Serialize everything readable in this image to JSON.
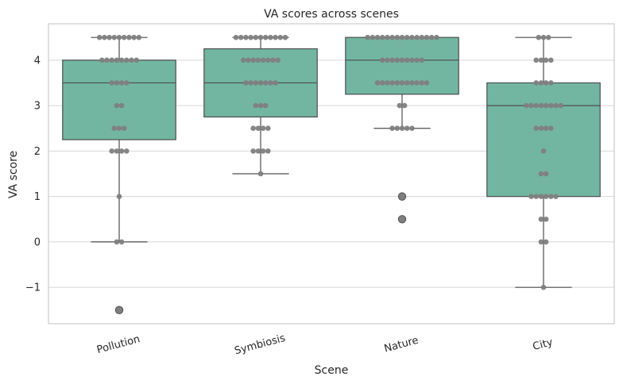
{
  "chart_data": {
    "type": "box",
    "title": "VA scores across scenes",
    "xlabel": "Scene",
    "ylabel": "VA score",
    "categories": [
      "Pollution",
      "Symbiosis",
      "Nature",
      "City"
    ],
    "ylim": [
      -1.8,
      4.8
    ],
    "yticks": [
      -1,
      0,
      1,
      2,
      3,
      4
    ],
    "ytick_labels": [
      "−1",
      "0",
      "1",
      "2",
      "3",
      "4"
    ],
    "grid": "horizontal",
    "box_color": "#72b6a1",
    "edge_color": "#4d4d4d",
    "point_color": "#808080",
    "boxes": [
      {
        "category": "Pollution",
        "q1": 2.25,
        "median": 3.5,
        "q3": 4.0,
        "whisker_low": 0.0,
        "whisker_high": 4.5,
        "outliers": [
          -1.5
        ]
      },
      {
        "category": "Symbiosis",
        "q1": 2.75,
        "median": 3.5,
        "q3": 4.25,
        "whisker_low": 1.5,
        "whisker_high": 4.5,
        "outliers": []
      },
      {
        "category": "Nature",
        "q1": 3.25,
        "median": 4.0,
        "q3": 4.5,
        "whisker_low": 2.5,
        "whisker_high": 4.5,
        "outliers": [
          1.0,
          0.5
        ]
      },
      {
        "category": "City",
        "q1": 1.0,
        "median": 3.0,
        "q3": 3.5,
        "whisker_low": -1.0,
        "whisker_high": 4.5,
        "outliers": []
      }
    ],
    "points": [
      {
        "category": "Pollution",
        "values": [
          -1.5,
          0,
          0,
          1,
          2,
          2,
          2,
          2,
          2.5,
          2.5,
          2.5,
          3,
          3,
          3.5,
          3.5,
          3.5,
          3.5,
          4,
          4,
          4,
          4,
          4,
          4,
          4,
          4,
          4.5,
          4.5,
          4.5,
          4.5,
          4.5,
          4.5,
          4.5,
          4.5,
          4.5
        ]
      },
      {
        "category": "Symbiosis",
        "values": [
          1.5,
          2,
          2,
          2,
          2,
          2.5,
          2.5,
          2.5,
          2.5,
          3,
          3,
          3,
          3.5,
          3.5,
          3.5,
          3.5,
          3.5,
          3.5,
          3.5,
          4,
          4,
          4,
          4,
          4,
          4,
          4,
          4,
          4.5,
          4.5,
          4.5,
          4.5,
          4.5,
          4.5,
          4.5,
          4.5,
          4.5,
          4.5,
          4.5
        ]
      },
      {
        "category": "Nature",
        "values": [
          0.5,
          1,
          2.5,
          2.5,
          2.5,
          2.5,
          2.5,
          3,
          3,
          3.5,
          3.5,
          3.5,
          3.5,
          3.5,
          3.5,
          3.5,
          3.5,
          3.5,
          3.5,
          3.5,
          4,
          4,
          4,
          4,
          4,
          4,
          4,
          4,
          4,
          4.5,
          4.5,
          4.5,
          4.5,
          4.5,
          4.5,
          4.5,
          4.5,
          4.5,
          4.5,
          4.5,
          4.5,
          4.5,
          4.5,
          4.5
        ]
      },
      {
        "category": "City",
        "values": [
          -1,
          0,
          0,
          0.5,
          0.5,
          1,
          1,
          1,
          1,
          1,
          1,
          1.5,
          1.5,
          2,
          2.5,
          2.5,
          2.5,
          2.5,
          3,
          3,
          3,
          3,
          3,
          3,
          3,
          3,
          3.5,
          3.5,
          3.5,
          3.5,
          4,
          4,
          4,
          4,
          4.5,
          4.5,
          4.5
        ]
      }
    ]
  }
}
